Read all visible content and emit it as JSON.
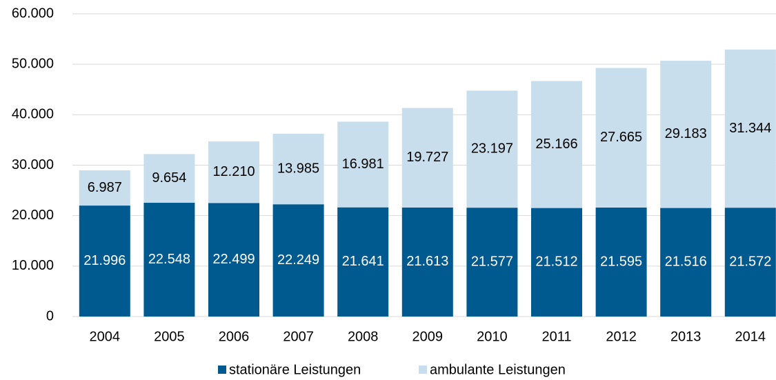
{
  "chart_data": {
    "type": "bar",
    "stacked": true,
    "categories": [
      "2004",
      "2005",
      "2006",
      "2007",
      "2008",
      "2009",
      "2010",
      "2011",
      "2012",
      "2013",
      "2014"
    ],
    "series": [
      {
        "name": "stationäre Leistungen",
        "color": "#00598f",
        "values": [
          21996,
          22548,
          22499,
          22249,
          21641,
          21613,
          21577,
          21512,
          21595,
          21516,
          21572
        ],
        "value_labels": [
          "21.996",
          "22.548",
          "22.499",
          "22.249",
          "21.641",
          "21.613",
          "21.577",
          "21.512",
          "21.595",
          "21.516",
          "21.572"
        ]
      },
      {
        "name": "ambulante Leistungen",
        "color": "#c9deec",
        "values": [
          6987,
          9654,
          12210,
          13985,
          16981,
          19727,
          23197,
          25166,
          27665,
          29183,
          31344
        ],
        "value_labels": [
          "6.987",
          "9.654",
          "12.210",
          "13.985",
          "16.981",
          "19.727",
          "23.197",
          "25.166",
          "27.665",
          "29.183",
          "31.344"
        ]
      }
    ],
    "ylim": [
      0,
      60000
    ],
    "yticks": [
      0,
      {
        "value": 10000,
        "label": "10.000"
      },
      {
        "value": 20000,
        "label": "20.000"
      },
      {
        "value": 30000,
        "label": "30.000"
      },
      {
        "value": 40000,
        "label": "40.000"
      },
      {
        "value": 50000,
        "label": "50.000"
      },
      {
        "value": 60000,
        "label": "60.000"
      }
    ],
    "grid": true,
    "legend": "bottom"
  }
}
